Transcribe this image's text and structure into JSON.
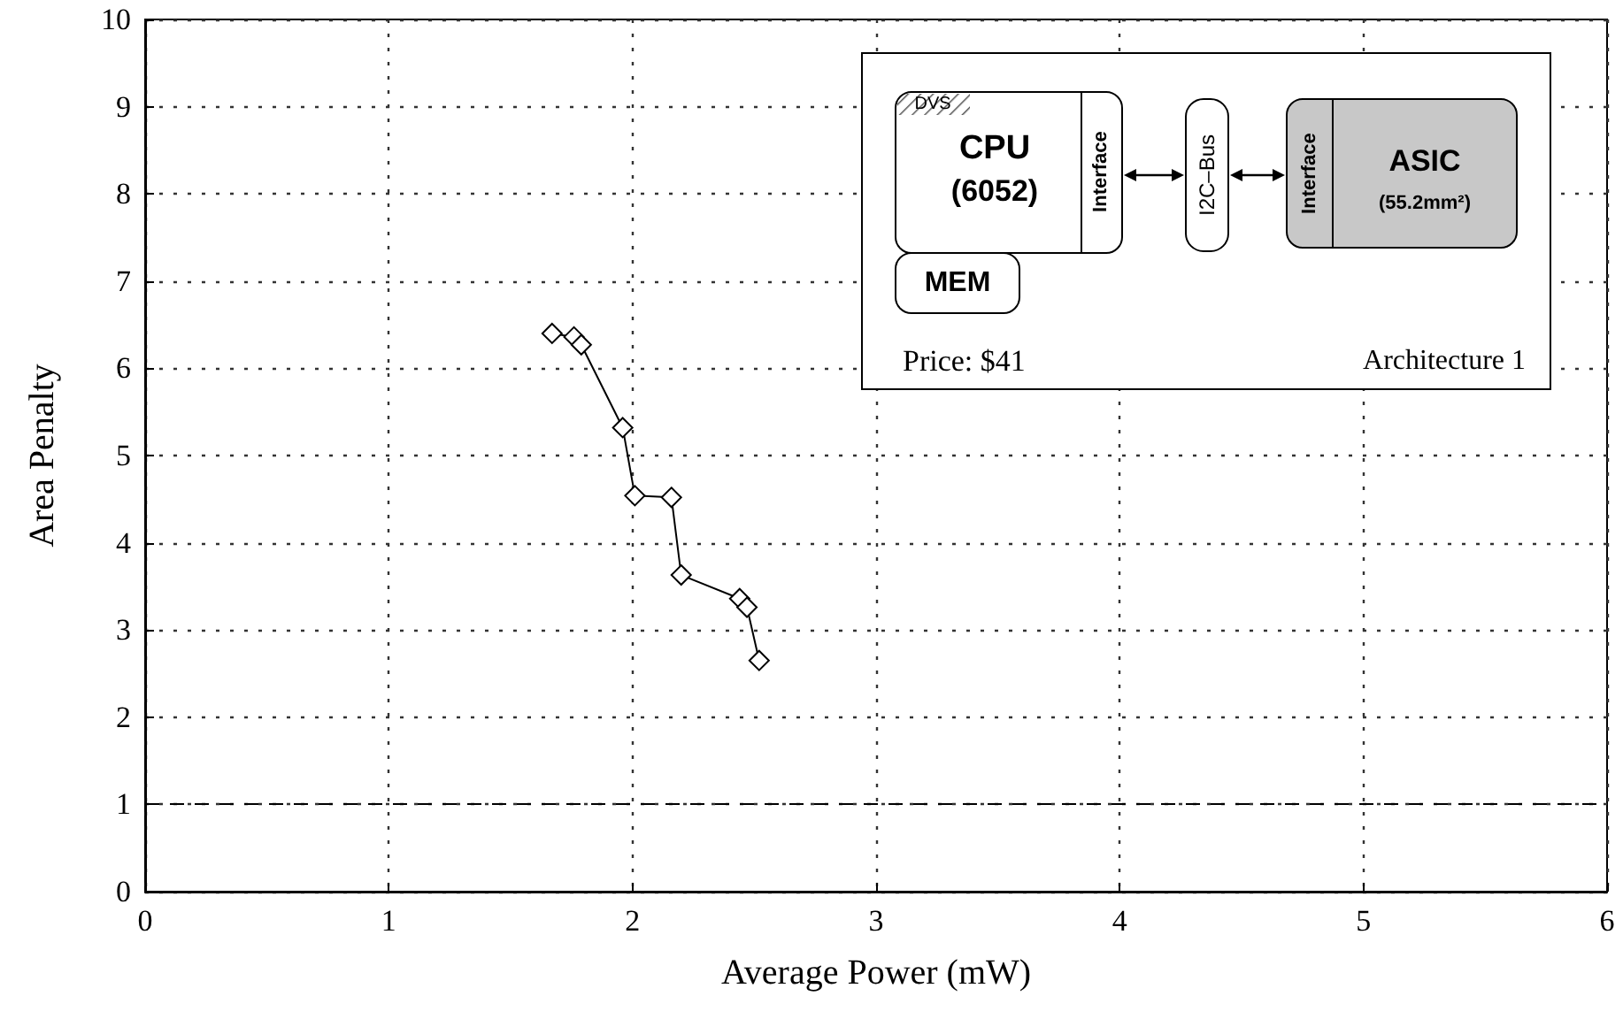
{
  "chart_data": {
    "type": "line",
    "xlabel": "Average Power (mW)",
    "ylabel": "Area Penalty",
    "x": [
      1.67,
      1.76,
      1.79,
      1.96,
      2.01,
      2.16,
      2.2,
      2.44,
      2.47,
      2.52
    ],
    "values": [
      6.4,
      6.36,
      6.27,
      5.32,
      4.54,
      4.52,
      3.63,
      3.36,
      3.26,
      2.65
    ],
    "color": "#000000",
    "marker": "diamond",
    "line_style": "solid",
    "xlim": [
      0,
      6
    ],
    "xticks": [
      0,
      1,
      2,
      3,
      4,
      5,
      6
    ],
    "ylim": [
      0,
      10
    ],
    "yticks": [
      0,
      1,
      2,
      3,
      4,
      5,
      6,
      7,
      8,
      9,
      10
    ],
    "grid": true,
    "ref_lines": [
      {
        "axis": "y",
        "value": 1,
        "line_style": "dashed",
        "color": "#000000"
      }
    ],
    "annotations": [
      "DVS",
      "CPU",
      "(6052)",
      "Interface",
      "I2C–Bus",
      "Interface",
      "ASIC",
      "(55.2mm²)",
      "MEM",
      "Price: $41",
      "Architecture 1"
    ]
  }
}
